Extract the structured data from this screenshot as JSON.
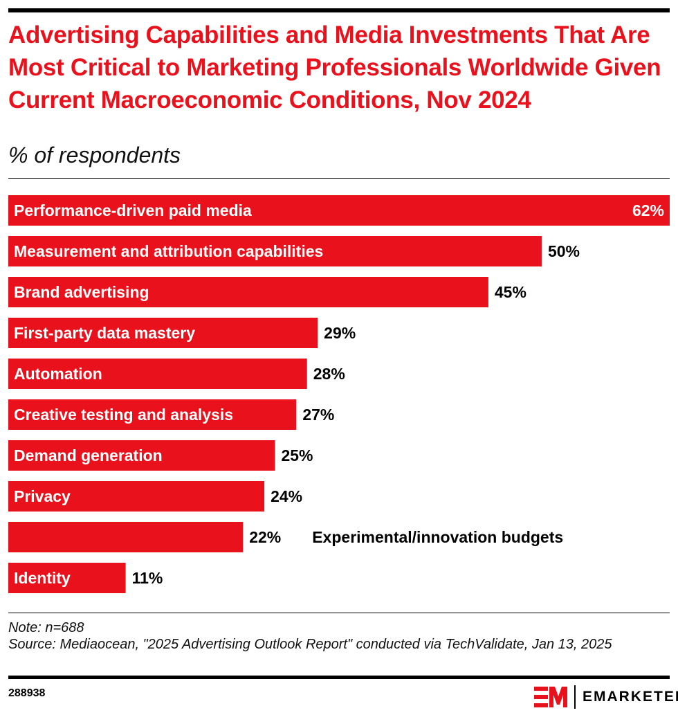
{
  "title": "Advertising Capabilities and Media Investments That Are Most Critical to Marketing Professionals Worldwide Given Current Macroeconomic Conditions, Nov 2024",
  "subtitle": "% of respondents",
  "note": "Note: n=688",
  "source": "Source: Mediaocean, \"2025 Advertising Outlook Report\" conducted via TechValidate, Jan 13, 2025",
  "chart_id": "288938",
  "brand": {
    "name": "EMARKETER",
    "mark": "EM"
  },
  "colors": {
    "bar": "#e8111c",
    "title": "#e8111c"
  },
  "chart_data": {
    "type": "bar",
    "orientation": "horizontal",
    "categories": [
      "Performance-driven paid media",
      "Measurement and attribution capabilities",
      "Brand advertising",
      "First-party data mastery",
      "Automation",
      "Creative testing and analysis",
      "Demand generation",
      "Privacy",
      "Experimental/innovation budgets",
      "Identity"
    ],
    "values": [
      62,
      50,
      45,
      29,
      28,
      27,
      25,
      24,
      22,
      11
    ],
    "value_labels": [
      "62%",
      "50%",
      "45%",
      "29%",
      "28%",
      "27%",
      "25%",
      "24%",
      "22%",
      "11%"
    ],
    "xlim": [
      0,
      62
    ],
    "grid": false
  }
}
